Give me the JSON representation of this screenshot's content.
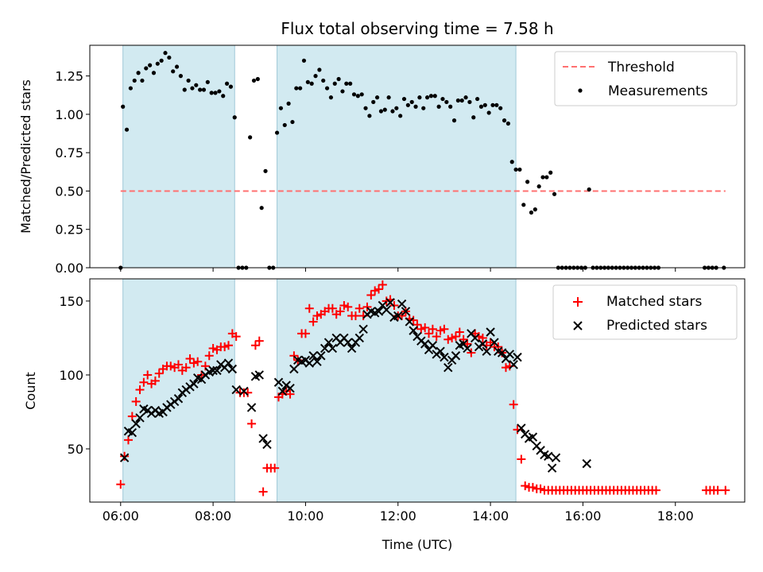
{
  "title": "Flux total observing time = 7.58 h",
  "xlabel": "Time (UTC)",
  "chart_data": [
    {
      "type": "scatter",
      "ylabel": "Matched/Predicted stars",
      "xlim": [
        "05:20",
        "19:30"
      ],
      "ylim": [
        0,
        1.45
      ],
      "yticks": [
        "0.00",
        "0.25",
        "0.50",
        "0.75",
        "1.00",
        "1.25"
      ],
      "ytick_values": [
        0,
        0.25,
        0.5,
        0.75,
        1.0,
        1.25
      ],
      "grid": false,
      "legend_position": "top-right",
      "shaded_intervals": [
        [
          "06:03",
          "08:28"
        ],
        [
          "09:23",
          "14:33"
        ]
      ],
      "threshold": {
        "name": "Threshold",
        "value": 0.5,
        "x_range": [
          "06:00",
          "19:05"
        ],
        "color": "#ff7070"
      },
      "series": [
        {
          "name": "Measurements",
          "color": "#000000",
          "x": [
            "06:00",
            "06:03",
            "06:08",
            "06:13",
            "06:18",
            "06:23",
            "06:28",
            "06:33",
            "06:38",
            "06:43",
            "06:48",
            "06:53",
            "06:58",
            "07:03",
            "07:08",
            "07:13",
            "07:18",
            "07:23",
            "07:28",
            "07:33",
            "07:38",
            "07:43",
            "07:48",
            "07:53",
            "07:58",
            "08:03",
            "08:08",
            "08:13",
            "08:18",
            "08:23",
            "08:28",
            "08:33",
            "08:38",
            "08:43",
            "08:48",
            "08:53",
            "08:58",
            "09:03",
            "09:08",
            "09:13",
            "09:18",
            "09:23",
            "09:28",
            "09:33",
            "09:38",
            "09:43",
            "09:48",
            "09:53",
            "09:58",
            "10:03",
            "10:08",
            "10:13",
            "10:18",
            "10:23",
            "10:28",
            "10:33",
            "10:38",
            "10:43",
            "10:48",
            "10:53",
            "10:58",
            "11:03",
            "11:08",
            "11:13",
            "11:18",
            "11:23",
            "11:28",
            "11:33",
            "11:38",
            "11:43",
            "11:48",
            "11:53",
            "11:58",
            "12:03",
            "12:08",
            "12:13",
            "12:18",
            "12:23",
            "12:28",
            "12:33",
            "12:38",
            "12:43",
            "12:48",
            "12:53",
            "12:58",
            "13:03",
            "13:08",
            "13:13",
            "13:18",
            "13:23",
            "13:28",
            "13:33",
            "13:38",
            "13:43",
            "13:48",
            "13:53",
            "13:58",
            "14:03",
            "14:08",
            "14:13",
            "14:18",
            "14:23",
            "14:28",
            "14:33",
            "14:38",
            "14:43",
            "14:48",
            "14:53",
            "14:58",
            "15:03",
            "15:08",
            "15:13",
            "15:18",
            "15:23",
            "15:28",
            "15:33",
            "15:38",
            "15:43",
            "15:48",
            "15:53",
            "15:58",
            "16:03",
            "16:08",
            "16:13",
            "16:18",
            "16:23",
            "16:28",
            "16:33",
            "16:38",
            "16:43",
            "16:48",
            "16:53",
            "16:58",
            "17:03",
            "17:08",
            "17:13",
            "17:18",
            "17:23",
            "17:28",
            "17:33",
            "17:38",
            "18:38",
            "18:43",
            "18:48",
            "18:53",
            "19:03"
          ],
          "y": [
            0.0,
            1.05,
            0.9,
            1.17,
            1.22,
            1.27,
            1.22,
            1.3,
            1.32,
            1.27,
            1.33,
            1.35,
            1.4,
            1.37,
            1.28,
            1.31,
            1.25,
            1.16,
            1.22,
            1.17,
            1.19,
            1.16,
            1.16,
            1.21,
            1.14,
            1.14,
            1.15,
            1.12,
            1.2,
            1.18,
            0.98,
            0.0,
            0.0,
            0.0,
            0.85,
            1.22,
            1.23,
            0.39,
            0.63,
            0.0,
            0.0,
            0.88,
            1.04,
            0.93,
            1.07,
            0.95,
            1.17,
            1.17,
            1.35,
            1.21,
            1.2,
            1.25,
            1.29,
            1.22,
            1.17,
            1.11,
            1.2,
            1.23,
            1.15,
            1.2,
            1.2,
            1.13,
            1.12,
            1.13,
            1.04,
            0.99,
            1.08,
            1.11,
            1.02,
            1.03,
            1.11,
            1.02,
            1.04,
            0.99,
            1.1,
            1.06,
            1.08,
            1.05,
            1.11,
            1.04,
            1.11,
            1.12,
            1.12,
            1.05,
            1.1,
            1.08,
            1.05,
            0.96,
            1.09,
            1.09,
            1.11,
            1.08,
            0.98,
            1.1,
            1.05,
            1.06,
            1.01,
            1.06,
            1.06,
            1.04,
            0.96,
            0.94,
            0.69,
            0.64,
            0.64,
            0.41,
            0.56,
            0.36,
            0.38,
            0.53,
            0.59,
            0.59,
            0.62,
            0.48,
            0.0,
            0.0,
            0.0,
            0.0,
            0.0,
            0.0,
            0.0,
            0.0,
            0.51,
            0.0,
            0.0,
            0.0,
            0.0,
            0.0,
            0.0,
            0.0,
            0.0,
            0.0,
            0.0,
            0.0,
            0.0,
            0.0,
            0.0,
            0.0,
            0.0,
            0.0,
            0.0,
            0.0,
            0.0,
            0.0,
            0.0,
            0.0
          ]
        }
      ]
    },
    {
      "type": "scatter",
      "ylabel": "Count",
      "xlabel": "Time (UTC)",
      "xlim": [
        "05:20",
        "19:30"
      ],
      "ylim": [
        14,
        165
      ],
      "xticks": [
        "06:00",
        "08:00",
        "10:00",
        "12:00",
        "14:00",
        "16:00",
        "18:00"
      ],
      "yticks": [
        "50",
        "100",
        "150"
      ],
      "ytick_values": [
        50,
        100,
        150
      ],
      "grid": false,
      "legend_position": "top-right",
      "shaded_intervals": [
        [
          "06:03",
          "08:28"
        ],
        [
          "09:23",
          "14:33"
        ]
      ],
      "series": [
        {
          "name": "Matched stars",
          "color": "#ff0000",
          "marker": "+",
          "x": [
            "06:00",
            "06:05",
            "06:10",
            "06:15",
            "06:20",
            "06:25",
            "06:30",
            "06:35",
            "06:40",
            "06:45",
            "06:50",
            "06:55",
            "07:00",
            "07:05",
            "07:10",
            "07:15",
            "07:20",
            "07:25",
            "07:30",
            "07:35",
            "07:40",
            "07:45",
            "07:50",
            "07:55",
            "08:00",
            "08:05",
            "08:10",
            "08:15",
            "08:20",
            "08:25",
            "08:30",
            "08:35",
            "08:40",
            "08:45",
            "08:50",
            "08:55",
            "09:00",
            "09:05",
            "09:10",
            "09:15",
            "09:20",
            "09:25",
            "09:30",
            "09:35",
            "09:40",
            "09:45",
            "09:50",
            "09:55",
            "10:00",
            "10:05",
            "10:10",
            "10:15",
            "10:20",
            "10:25",
            "10:30",
            "10:35",
            "10:40",
            "10:45",
            "10:50",
            "10:55",
            "11:00",
            "11:05",
            "11:10",
            "11:15",
            "11:20",
            "11:25",
            "11:30",
            "11:35",
            "11:40",
            "11:45",
            "11:50",
            "11:55",
            "12:00",
            "12:05",
            "12:10",
            "12:15",
            "12:20",
            "12:25",
            "12:30",
            "12:35",
            "12:40",
            "12:45",
            "12:50",
            "12:55",
            "13:00",
            "13:05",
            "13:10",
            "13:15",
            "13:20",
            "13:25",
            "13:30",
            "13:35",
            "13:40",
            "13:45",
            "13:50",
            "13:55",
            "14:00",
            "14:05",
            "14:10",
            "14:15",
            "14:20",
            "14:25",
            "14:30",
            "14:35",
            "14:40",
            "14:45",
            "14:50",
            "14:55",
            "15:00",
            "15:05",
            "15:10",
            "15:15",
            "15:20",
            "15:25",
            "15:30",
            "15:35",
            "15:40",
            "15:45",
            "15:50",
            "15:55",
            "16:00",
            "16:05",
            "16:10",
            "16:15",
            "16:20",
            "16:25",
            "16:30",
            "16:35",
            "16:40",
            "16:45",
            "16:50",
            "16:55",
            "17:00",
            "17:05",
            "17:10",
            "17:15",
            "17:20",
            "17:25",
            "17:30",
            "17:35",
            "18:40",
            "18:45",
            "18:50",
            "18:55",
            "19:05"
          ],
          "y": [
            26,
            45,
            56,
            72,
            82,
            90,
            95,
            100,
            94,
            96,
            101,
            104,
            106,
            106,
            105,
            107,
            103,
            105,
            111,
            108,
            109,
            100,
            106,
            113,
            118,
            117,
            119,
            119,
            120,
            128,
            126,
            88,
            88,
            88,
            67,
            120,
            123,
            21,
            37,
            37,
            37,
            85,
            87,
            89,
            87,
            113,
            110,
            128,
            128,
            145,
            136,
            140,
            141,
            143,
            145,
            145,
            141,
            143,
            147,
            146,
            140,
            140,
            145,
            140,
            146,
            154,
            157,
            158,
            161,
            150,
            151,
            147,
            140,
            140,
            143,
            138,
            137,
            134,
            131,
            132,
            128,
            131,
            126,
            130,
            131,
            124,
            125,
            126,
            129,
            124,
            121,
            115,
            128,
            126,
            125,
            120,
            122,
            119,
            119,
            115,
            105,
            106,
            80,
            63,
            43,
            25,
            24,
            24,
            23,
            23,
            22,
            22,
            22,
            22,
            22,
            22,
            22,
            22,
            22,
            22,
            22,
            22,
            22,
            22,
            22,
            22,
            22,
            22,
            22,
            22,
            22,
            22,
            22,
            22,
            22,
            22,
            22,
            22,
            22,
            22,
            22,
            22,
            22,
            22,
            22
          ]
        },
        {
          "name": "Predicted stars",
          "color": "#000000",
          "marker": "x",
          "x": [
            "06:05",
            "06:10",
            "06:15",
            "06:20",
            "06:25",
            "06:30",
            "06:35",
            "06:40",
            "06:45",
            "06:50",
            "06:55",
            "07:00",
            "07:05",
            "07:10",
            "07:15",
            "07:20",
            "07:25",
            "07:30",
            "07:35",
            "07:40",
            "07:45",
            "07:50",
            "07:55",
            "08:00",
            "08:05",
            "08:10",
            "08:15",
            "08:20",
            "08:25",
            "08:30",
            "08:40",
            "08:50",
            "08:55",
            "09:00",
            "09:05",
            "09:10",
            "09:25",
            "09:30",
            "09:35",
            "09:40",
            "09:45",
            "09:50",
            "09:55",
            "10:00",
            "10:05",
            "10:10",
            "10:15",
            "10:20",
            "10:25",
            "10:30",
            "10:35",
            "10:40",
            "10:45",
            "10:50",
            "10:55",
            "11:00",
            "11:05",
            "11:10",
            "11:15",
            "11:20",
            "11:25",
            "11:30",
            "11:35",
            "11:40",
            "11:45",
            "11:50",
            "11:55",
            "12:00",
            "12:05",
            "12:10",
            "12:15",
            "12:20",
            "12:25",
            "12:30",
            "12:35",
            "12:40",
            "12:45",
            "12:50",
            "12:55",
            "13:00",
            "13:05",
            "13:10",
            "13:15",
            "13:20",
            "13:25",
            "13:30",
            "13:35",
            "13:40",
            "13:45",
            "13:50",
            "13:55",
            "14:00",
            "14:05",
            "14:10",
            "14:15",
            "14:20",
            "14:25",
            "14:30",
            "14:35",
            "14:40",
            "14:45",
            "14:50",
            "14:55",
            "15:00",
            "15:05",
            "15:10",
            "15:15",
            "15:20",
            "15:25",
            "16:05"
          ],
          "y": [
            44,
            62,
            61,
            67,
            71,
            77,
            76,
            74,
            76,
            74,
            75,
            78,
            80,
            82,
            84,
            88,
            90,
            92,
            94,
            98,
            97,
            100,
            102,
            103,
            103,
            107,
            105,
            108,
            104,
            90,
            89,
            78,
            99,
            100,
            57,
            53,
            95,
            89,
            93,
            91,
            104,
            110,
            109,
            110,
            108,
            113,
            109,
            113,
            118,
            122,
            118,
            125,
            122,
            125,
            122,
            118,
            122,
            125,
            131,
            141,
            143,
            142,
            143,
            147,
            144,
            149,
            139,
            140,
            148,
            143,
            136,
            130,
            126,
            123,
            121,
            117,
            120,
            114,
            116,
            112,
            105,
            110,
            113,
            120,
            121,
            118,
            128,
            125,
            119,
            121,
            116,
            129,
            122,
            116,
            115,
            111,
            114,
            107,
            112,
            64,
            60,
            57,
            58,
            52,
            49,
            46,
            45,
            37,
            44,
            40
          ]
        }
      ]
    }
  ]
}
